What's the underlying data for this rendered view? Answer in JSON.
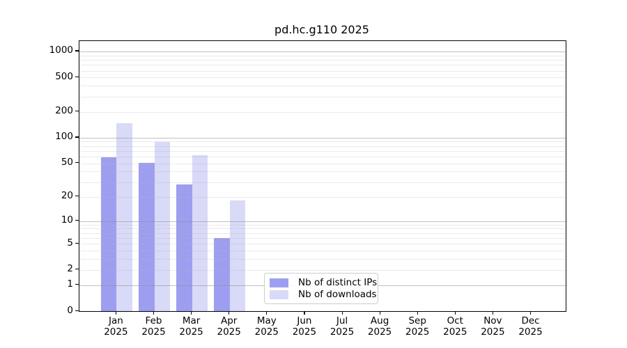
{
  "title": "pd.hc.g110 2025",
  "chart_data": {
    "type": "bar",
    "title": "pd.hc.g110 2025",
    "y_scale": "log1p",
    "grid": true,
    "categories": [
      "Jan",
      "Feb",
      "Mar",
      "Apr",
      "May",
      "Jun",
      "Jul",
      "Aug",
      "Sep",
      "Oct",
      "Nov",
      "Dec"
    ],
    "category_year": "2025",
    "series": [
      {
        "name": "Nb of distinct IPs",
        "color": "#9e9ef0",
        "values": [
          59,
          51,
          28,
          6,
          0,
          0,
          0,
          0,
          0,
          0,
          0,
          0
        ]
      },
      {
        "name": "Nb of downloads",
        "color": "#d9d9f8",
        "values": [
          148,
          89,
          62,
          18,
          0,
          0,
          0,
          0,
          0,
          0,
          0,
          0
        ]
      }
    ],
    "yticks": [
      0,
      1,
      2,
      5,
      10,
      20,
      50,
      100,
      200,
      500,
      1000
    ],
    "ylim": [
      0,
      1270
    ],
    "xlabel": "",
    "ylabel": "",
    "legend_position": "lower-center-inside",
    "axis_color": "#000000",
    "major_grid_values": [
      1,
      10,
      100,
      1000
    ],
    "minor_grid_step": "2-9 per decade"
  }
}
